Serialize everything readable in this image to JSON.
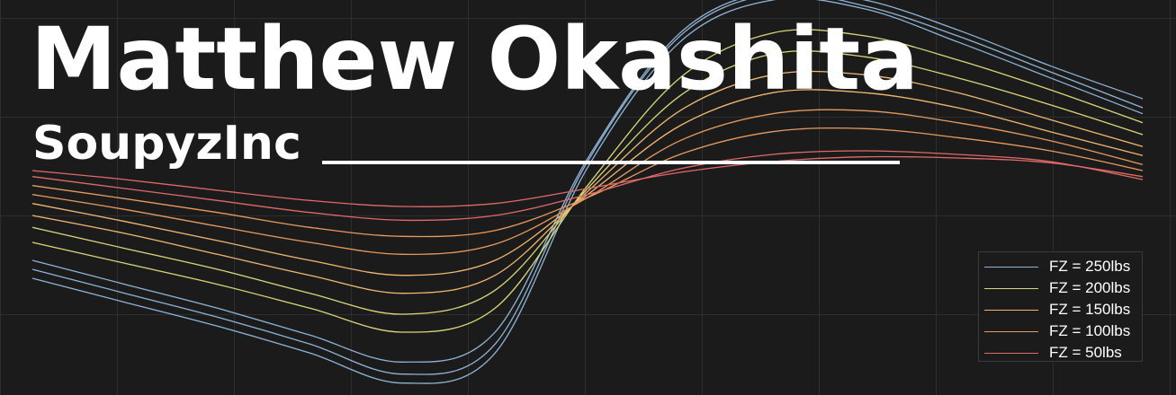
{
  "header": {
    "name": "Matthew Okashita",
    "handle": "SoupyzInc"
  },
  "chart_data": {
    "type": "line",
    "title": "",
    "xlabel": "",
    "ylabel": "",
    "grid": true,
    "legend_position": "bottom-right",
    "xlim": [
      -12,
      12
    ],
    "ylim": [
      -3,
      3
    ],
    "series": [
      {
        "name": "FZ = 250lbs",
        "color": "#8fb4d6",
        "curves": [
          {
            "x": [
              -12,
              -10,
              -8,
              -6,
              -4,
              -2,
              0,
              2,
              4,
              6,
              8,
              10,
              12
            ],
            "y": [
              -1.35,
              -1.75,
              -2.15,
              -2.6,
              -3.1,
              -2.6,
              0.5,
              2.6,
              3.3,
              3.15,
              2.6,
              2.0,
              1.4
            ]
          },
          {
            "x": [
              -12,
              -10,
              -8,
              -6,
              -4,
              -2,
              0,
              2,
              4,
              6,
              8,
              10,
              12
            ],
            "y": [
              -1.2,
              -1.6,
              -2.0,
              -2.45,
              -2.95,
              -2.45,
              0.6,
              2.7,
              3.4,
              3.2,
              2.7,
              2.1,
              1.5
            ]
          },
          {
            "x": [
              -12,
              -10,
              -8,
              -6,
              -4,
              -2,
              0,
              2,
              4,
              6,
              8,
              10,
              12
            ],
            "y": [
              -1.05,
              -1.45,
              -1.85,
              -2.3,
              -2.75,
              -2.25,
              0.65,
              2.75,
              3.45,
              3.3,
              2.8,
              2.2,
              1.65
            ]
          }
        ]
      },
      {
        "name": "FZ = 200lbs",
        "color": "#d8d87a",
        "curves": [
          {
            "x": [
              -12,
              -10,
              -8,
              -6,
              -4,
              -2,
              0,
              2,
              4,
              6,
              8,
              10,
              12
            ],
            "y": [
              -0.75,
              -1.1,
              -1.45,
              -1.85,
              -2.25,
              -1.85,
              0.2,
              2.0,
              2.75,
              2.7,
              2.3,
              1.8,
              1.25
            ]
          },
          {
            "x": [
              -12,
              -10,
              -8,
              -6,
              -4,
              -2,
              0,
              2,
              4,
              6,
              8,
              10,
              12
            ],
            "y": [
              -0.5,
              -0.85,
              -1.2,
              -1.6,
              -1.95,
              -1.55,
              0.15,
              1.7,
              2.4,
              2.35,
              2.0,
              1.55,
              1.05
            ]
          }
        ]
      },
      {
        "name": "FZ = 150lbs",
        "color": "#f2b872",
        "curves": [
          {
            "x": [
              -12,
              -10,
              -8,
              -6,
              -4,
              -2,
              0,
              2,
              4,
              6,
              8,
              10,
              12
            ],
            "y": [
              -0.3,
              -0.6,
              -0.95,
              -1.3,
              -1.6,
              -1.3,
              0.1,
              1.45,
              2.05,
              2.05,
              1.75,
              1.3,
              0.85
            ]
          },
          {
            "x": [
              -12,
              -10,
              -8,
              -6,
              -4,
              -2,
              0,
              2,
              4,
              6,
              8,
              10,
              12
            ],
            "y": [
              -0.1,
              -0.4,
              -0.72,
              -1.05,
              -1.3,
              -1.05,
              0.05,
              1.2,
              1.75,
              1.75,
              1.5,
              1.1,
              0.7
            ]
          }
        ]
      },
      {
        "name": "FZ = 100lbs",
        "color": "#e89a5e",
        "curves": [
          {
            "x": [
              -12,
              -10,
              -8,
              -6,
              -4,
              -2,
              0,
              2,
              4,
              6,
              8,
              10,
              12
            ],
            "y": [
              0.05,
              -0.2,
              -0.48,
              -0.75,
              -0.95,
              -0.78,
              0.0,
              0.95,
              1.4,
              1.45,
              1.25,
              0.95,
              0.55
            ]
          },
          {
            "x": [
              -12,
              -10,
              -8,
              -6,
              -4,
              -2,
              0,
              2,
              4,
              6,
              8,
              10,
              12
            ],
            "y": [
              0.2,
              -0.02,
              -0.25,
              -0.5,
              -0.65,
              -0.55,
              0.0,
              0.72,
              1.1,
              1.15,
              1.0,
              0.78,
              0.45
            ]
          }
        ]
      },
      {
        "name": "FZ = 50lbs",
        "color": "#e06a6a",
        "curves": [
          {
            "x": [
              -12,
              -10,
              -8,
              -6,
              -4,
              -2,
              0,
              2,
              4,
              6,
              8,
              10,
              12
            ],
            "y": [
              0.35,
              0.15,
              -0.05,
              -0.25,
              -0.38,
              -0.3,
              0.05,
              0.48,
              0.72,
              0.78,
              0.72,
              0.6,
              0.3
            ]
          },
          {
            "x": [
              -12,
              -10,
              -8,
              -6,
              -4,
              -2,
              0,
              2,
              4,
              6,
              8,
              10,
              12
            ],
            "y": [
              0.45,
              0.3,
              0.12,
              -0.05,
              -0.15,
              -0.1,
              0.15,
              0.42,
              0.6,
              0.68,
              0.66,
              0.58,
              0.35
            ]
          }
        ]
      }
    ]
  }
}
